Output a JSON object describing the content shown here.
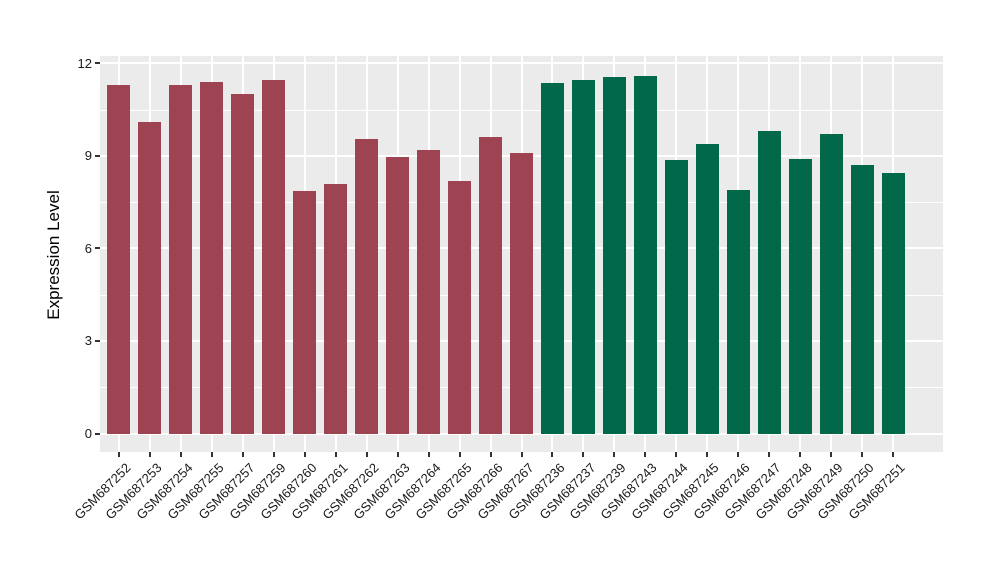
{
  "figure": {
    "background": "#FFFFFF",
    "panel_background": "#EBEBEB",
    "grid_color": "#FFFFFF",
    "tick_color": "#333333",
    "axis_text_color": "#1A1A1A"
  },
  "chart_data": {
    "type": "bar",
    "title": "",
    "xlabel": "",
    "ylabel": "Expression Level",
    "ylim": [
      0,
      12
    ],
    "yticks": [
      0,
      3,
      6,
      9,
      12
    ],
    "yticks_minor": [
      1.5,
      4.5,
      7.5,
      10.5
    ],
    "grid": true,
    "legend": false,
    "group_colors": {
      "groupA": "#9E4351",
      "groupB": "#02684A"
    },
    "bars": [
      {
        "label": "GSM687252",
        "value": 11.3,
        "group": "groupA"
      },
      {
        "label": "GSM687253",
        "value": 10.1,
        "group": "groupA"
      },
      {
        "label": "GSM687254",
        "value": 11.3,
        "group": "groupA"
      },
      {
        "label": "GSM687255",
        "value": 11.4,
        "group": "groupA"
      },
      {
        "label": "GSM687257",
        "value": 11.0,
        "group": "groupA"
      },
      {
        "label": "GSM687259",
        "value": 11.45,
        "group": "groupA"
      },
      {
        "label": "GSM687260",
        "value": 7.85,
        "group": "groupA"
      },
      {
        "label": "GSM687261",
        "value": 8.1,
        "group": "groupA"
      },
      {
        "label": "GSM687262",
        "value": 9.55,
        "group": "groupA"
      },
      {
        "label": "GSM687263",
        "value": 8.95,
        "group": "groupA"
      },
      {
        "label": "GSM687264",
        "value": 9.2,
        "group": "groupA"
      },
      {
        "label": "GSM687265",
        "value": 8.2,
        "group": "groupA"
      },
      {
        "label": "GSM687266",
        "value": 9.6,
        "group": "groupA"
      },
      {
        "label": "GSM687267",
        "value": 9.1,
        "group": "groupA"
      },
      {
        "label": "GSM687236",
        "value": 11.35,
        "group": "groupB"
      },
      {
        "label": "GSM687237",
        "value": 11.45,
        "group": "groupB"
      },
      {
        "label": "GSM687239",
        "value": 11.55,
        "group": "groupB"
      },
      {
        "label": "GSM687243",
        "value": 11.6,
        "group": "groupB"
      },
      {
        "label": "GSM687244",
        "value": 8.85,
        "group": "groupB"
      },
      {
        "label": "GSM687245",
        "value": 9.4,
        "group": "groupB"
      },
      {
        "label": "GSM687246",
        "value": 7.9,
        "group": "groupB"
      },
      {
        "label": "GSM687247",
        "value": 9.8,
        "group": "groupB"
      },
      {
        "label": "GSM687248",
        "value": 8.9,
        "group": "groupB"
      },
      {
        "label": "GSM687249",
        "value": 9.7,
        "group": "groupB"
      },
      {
        "label": "GSM687250",
        "value": 8.7,
        "group": "groupB"
      },
      {
        "label": "GSM687251",
        "value": 8.45,
        "group": "groupB"
      }
    ]
  }
}
